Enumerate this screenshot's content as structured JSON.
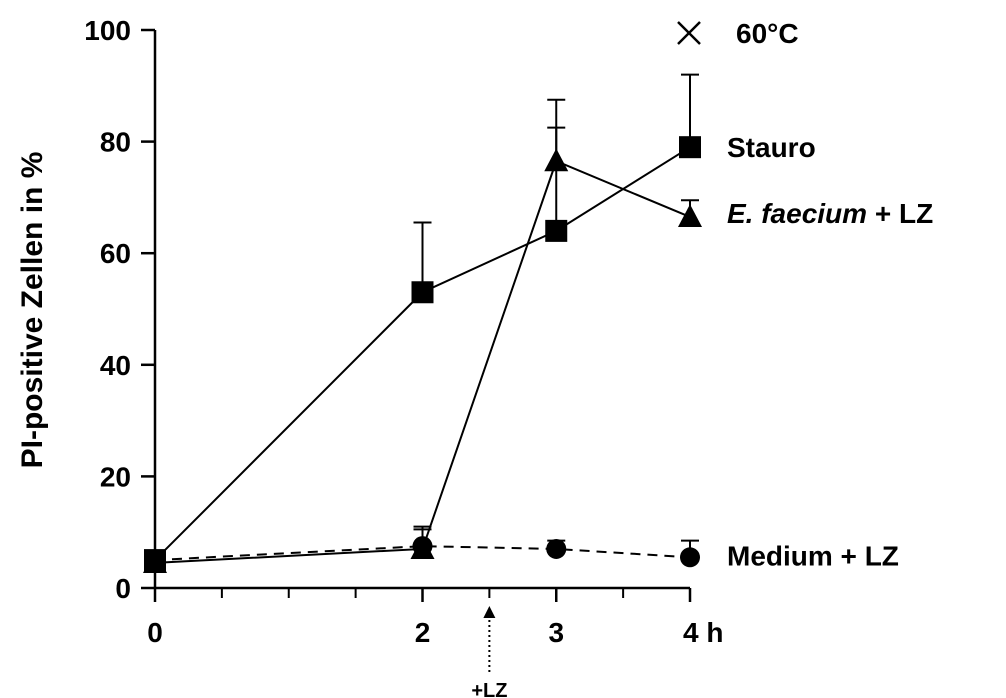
{
  "chart_data": {
    "type": "line",
    "ylabel": "PI-positive Zellen in %",
    "ylim": [
      0,
      100
    ],
    "yticks": [
      "0",
      "20",
      "40",
      "60",
      "80",
      "100"
    ],
    "xlim": [
      0,
      4
    ],
    "xtick_labels": [
      {
        "x": 0,
        "label": "0"
      },
      {
        "x": 2,
        "label": "2"
      },
      {
        "x": 3,
        "label": "3"
      },
      {
        "x": 4,
        "label": "4 h"
      }
    ],
    "x_minor_ticks": [
      0.5,
      1,
      1.5,
      2.5,
      3.5
    ],
    "annotation": {
      "x": 2.5,
      "label": "+LZ"
    },
    "series": [
      {
        "name": "Stauro",
        "marker": "square",
        "line": "solid",
        "x": [
          0,
          2,
          3,
          4
        ],
        "y": [
          5,
          53,
          64,
          79
        ],
        "err": [
          0,
          12.5,
          18.5,
          13
        ]
      },
      {
        "name_italic": "E. faecium",
        "name_rest": " + LZ",
        "marker": "triangle",
        "line": "solid",
        "x": [
          0,
          2,
          3,
          4
        ],
        "y": [
          4.5,
          7,
          76.5,
          66.5
        ],
        "err": [
          0,
          4,
          11,
          3
        ]
      },
      {
        "name": "Medium + LZ",
        "marker": "circle",
        "line": "dashed",
        "x": [
          0,
          2,
          3,
          4
        ],
        "y": [
          5,
          7.5,
          7,
          5.5
        ],
        "err": [
          0,
          3,
          1.5,
          3
        ]
      }
    ],
    "extra_legend": {
      "marker": "x",
      "name": "60°C"
    }
  }
}
